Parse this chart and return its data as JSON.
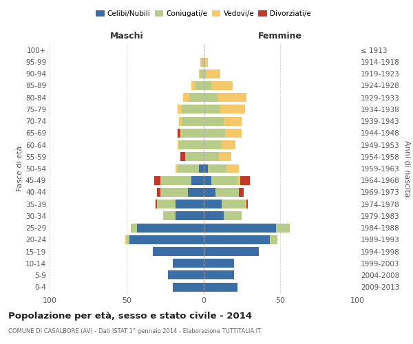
{
  "age_groups": [
    "100+",
    "95-99",
    "90-94",
    "85-89",
    "80-84",
    "75-79",
    "70-74",
    "65-69",
    "60-64",
    "55-59",
    "50-54",
    "45-49",
    "40-44",
    "35-39",
    "30-34",
    "25-29",
    "20-24",
    "15-19",
    "10-14",
    "5-9",
    "0-4"
  ],
  "birth_years": [
    "≤ 1913",
    "1914-1918",
    "1919-1923",
    "1924-1928",
    "1929-1933",
    "1934-1938",
    "1939-1943",
    "1944-1948",
    "1949-1953",
    "1954-1958",
    "1959-1963",
    "1964-1968",
    "1969-1973",
    "1974-1978",
    "1979-1983",
    "1984-1988",
    "1989-1993",
    "1994-1998",
    "1999-2003",
    "2004-2008",
    "2009-2013"
  ],
  "maschi": {
    "celibi": [
      0,
      0,
      0,
      0,
      0,
      0,
      0,
      0,
      0,
      0,
      3,
      8,
      10,
      18,
      18,
      43,
      48,
      33,
      20,
      23,
      20
    ],
    "coniugati": [
      0,
      1,
      2,
      5,
      9,
      14,
      14,
      14,
      16,
      12,
      14,
      20,
      18,
      12,
      8,
      4,
      2,
      0,
      0,
      0,
      0
    ],
    "vedovi": [
      0,
      1,
      1,
      3,
      4,
      3,
      2,
      1,
      1,
      0,
      1,
      0,
      0,
      0,
      0,
      0,
      1,
      0,
      0,
      0,
      0
    ],
    "divorziati": [
      0,
      0,
      0,
      0,
      0,
      0,
      0,
      2,
      0,
      3,
      0,
      4,
      2,
      1,
      0,
      0,
      0,
      0,
      0,
      0,
      0
    ]
  },
  "femmine": {
    "nubili": [
      0,
      0,
      0,
      0,
      0,
      0,
      0,
      0,
      0,
      0,
      3,
      5,
      8,
      12,
      13,
      47,
      43,
      36,
      20,
      20,
      22
    ],
    "coniugate": [
      0,
      1,
      2,
      5,
      9,
      11,
      13,
      14,
      12,
      10,
      12,
      17,
      15,
      15,
      12,
      9,
      5,
      0,
      0,
      0,
      0
    ],
    "vedove": [
      0,
      2,
      9,
      14,
      19,
      16,
      12,
      11,
      9,
      8,
      8,
      2,
      0,
      1,
      0,
      0,
      0,
      0,
      0,
      0,
      0
    ],
    "divorziate": [
      0,
      0,
      0,
      0,
      0,
      0,
      0,
      0,
      0,
      0,
      0,
      6,
      3,
      1,
      0,
      0,
      0,
      0,
      0,
      0,
      0
    ]
  },
  "color_celibi": "#3A6EA5",
  "color_coniugati": "#B8CC8A",
  "color_vedovi": "#F5C96A",
  "color_divorziati": "#C0392B",
  "title": "Popolazione per età, sesso e stato civile - 2014",
  "subtitle": "COMUNE DI CASALBORE (AV) - Dati ISTAT 1° gennaio 2014 - Elaborazione TUTTITALIA.IT",
  "xlabel_left": "Maschi",
  "xlabel_right": "Femmine",
  "ylabel_left": "Fasce di età",
  "ylabel_right": "Anni di nascita",
  "xlim": 100,
  "background_color": "#ffffff",
  "grid_color": "#cccccc"
}
